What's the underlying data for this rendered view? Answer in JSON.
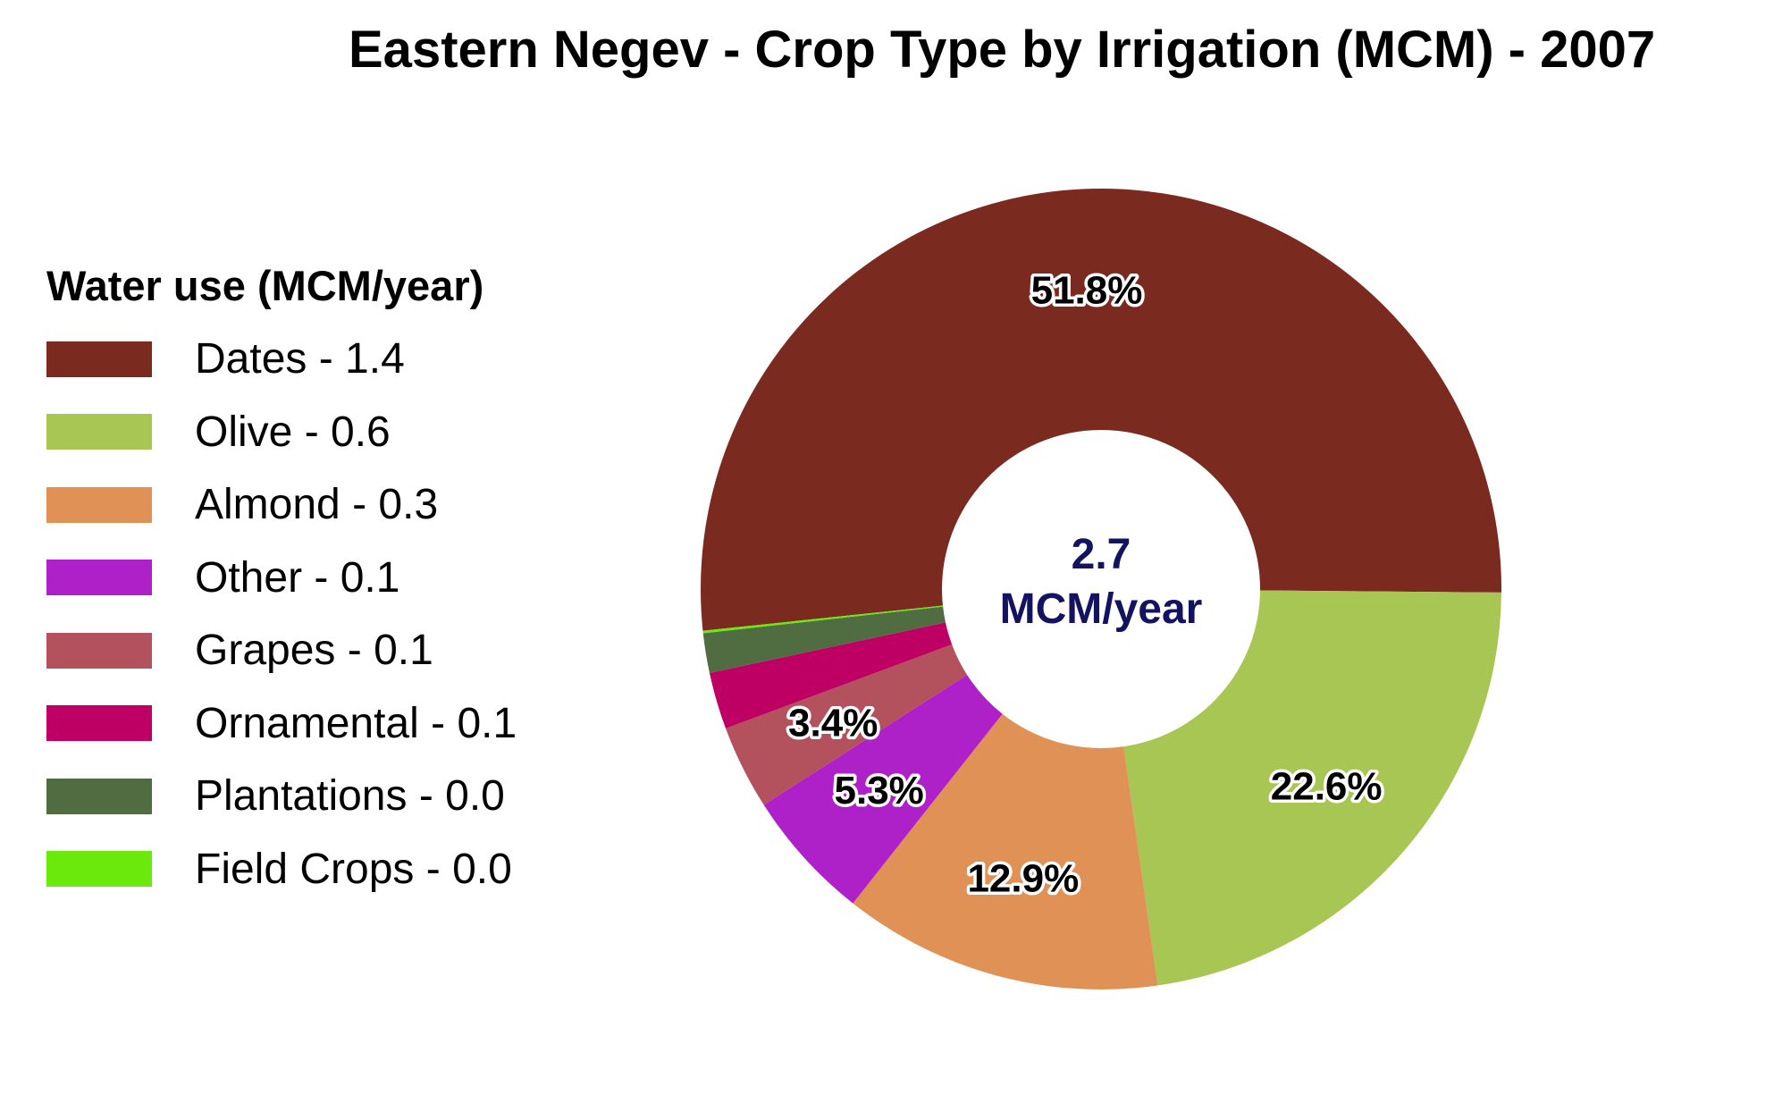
{
  "chart_data": {
    "type": "pie",
    "title": "Eastern Negev - Crop Type by Irrigation (MCM) - 2007",
    "legend_title": "Water use (MCM/year)",
    "legend_position": "left",
    "center_label": {
      "value": "2.7",
      "unit": "MCM/year"
    },
    "slices": [
      {
        "label": "Dates - 1.4",
        "name": "Dates",
        "value": 1.4,
        "percent": 51.8,
        "percent_label": "51.8%",
        "color": "#7a2a1e"
      },
      {
        "label": "Olive - 0.6",
        "name": "Olive",
        "value": 0.6,
        "percent": 22.6,
        "percent_label": "22.6%",
        "color": "#a8c653"
      },
      {
        "label": "Almond - 0.3",
        "name": "Almond",
        "value": 0.3,
        "percent": 12.9,
        "percent_label": "12.9%",
        "color": "#e09155"
      },
      {
        "label": "Other - 0.1",
        "name": "Other",
        "value": 0.1,
        "percent": 5.3,
        "percent_label": "5.3%",
        "color": "#ae21c8"
      },
      {
        "label": "Grapes - 0.1",
        "name": "Grapes",
        "value": 0.1,
        "percent": 3.4,
        "percent_label": "3.4%",
        "color": "#b3525c"
      },
      {
        "label": "Ornamental - 0.1",
        "name": "Ornamental",
        "value": 0.1,
        "percent": 2.3,
        "percent_label": "",
        "color": "#be0064"
      },
      {
        "label": "Plantations - 0.0",
        "name": "Plantations",
        "value": 0.0,
        "percent": 1.6,
        "percent_label": "",
        "color": "#4f6d41"
      },
      {
        "label": "Field Crops - 0.0",
        "name": "Field Crops",
        "value": 0.0,
        "percent": 0.1,
        "percent_label": "",
        "color": "#6be80c"
      }
    ]
  }
}
